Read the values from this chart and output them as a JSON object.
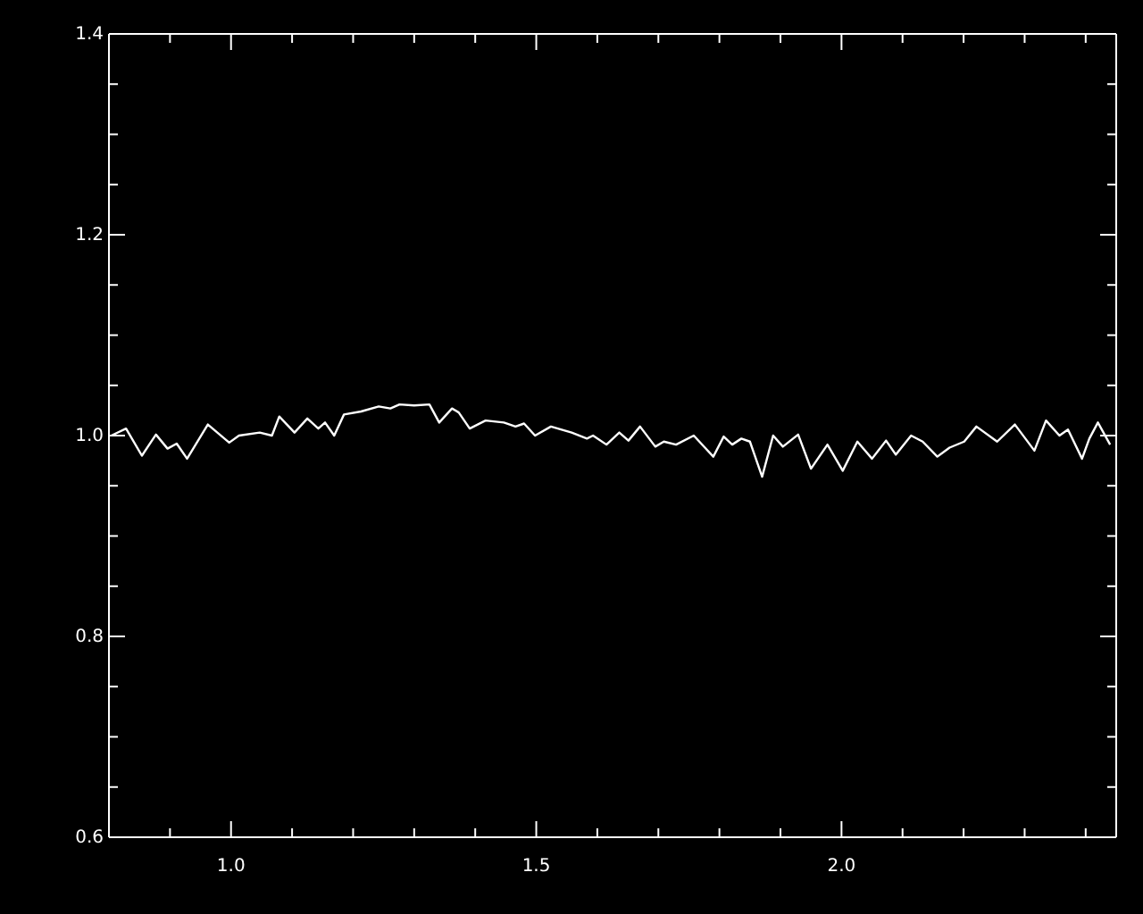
{
  "chart_data": {
    "type": "line",
    "x": [
      0.804,
      0.828,
      0.854,
      0.877,
      0.896,
      0.911,
      0.928,
      0.962,
      0.997,
      1.013,
      1.047,
      1.067,
      1.079,
      1.104,
      1.125,
      1.143,
      1.154,
      1.169,
      1.185,
      1.213,
      1.242,
      1.261,
      1.276,
      1.3,
      1.325,
      1.341,
      1.362,
      1.373,
      1.391,
      1.417,
      1.447,
      1.466,
      1.48,
      1.498,
      1.524,
      1.558,
      1.583,
      1.593,
      1.615,
      1.636,
      1.651,
      1.67,
      1.695,
      1.709,
      1.729,
      1.758,
      1.79,
      1.807,
      1.821,
      1.836,
      1.85,
      1.87,
      1.888,
      1.904,
      1.929,
      1.95,
      1.977,
      2.002,
      2.026,
      2.05,
      2.073,
      2.089,
      2.114,
      2.133,
      2.157,
      2.177,
      2.201,
      2.221,
      2.255,
      2.284,
      2.316,
      2.335,
      2.357,
      2.371,
      2.394,
      2.406,
      2.42,
      2.44
    ],
    "series": [
      {
        "color": "#ffffff",
        "values": [
          1.0,
          1.007,
          0.98,
          1.001,
          0.987,
          0.992,
          0.977,
          1.011,
          0.993,
          1.0,
          1.003,
          1.0,
          1.019,
          1.003,
          1.017,
          1.007,
          1.013,
          1.0,
          1.021,
          1.024,
          1.029,
          1.027,
          1.031,
          1.03,
          1.031,
          1.013,
          1.027,
          1.023,
          1.007,
          1.015,
          1.013,
          1.009,
          1.012,
          1.0,
          1.009,
          1.003,
          0.997,
          1.0,
          0.991,
          1.003,
          0.995,
          1.009,
          0.989,
          0.994,
          0.991,
          1.0,
          0.979,
          0.999,
          0.991,
          0.997,
          0.994,
          0.959,
          1.0,
          0.989,
          1.001,
          0.967,
          0.991,
          0.965,
          0.994,
          0.977,
          0.995,
          0.981,
          1.0,
          0.994,
          0.979,
          0.988,
          0.994,
          1.009,
          0.994,
          1.011,
          0.985,
          1.015,
          1.0,
          1.006,
          0.977,
          0.997,
          1.013,
          0.991
        ]
      }
    ],
    "xlim": [
      0.8,
      2.45
    ],
    "xticks": [
      {
        "value": 0.9,
        "label": null
      },
      {
        "value": 1.0,
        "label": "1.0"
      },
      {
        "value": 1.1,
        "label": null
      },
      {
        "value": 1.2,
        "label": null
      },
      {
        "value": 1.3,
        "label": null
      },
      {
        "value": 1.4,
        "label": null
      },
      {
        "value": 1.5,
        "label": "1.5"
      },
      {
        "value": 1.6,
        "label": null
      },
      {
        "value": 1.7,
        "label": null
      },
      {
        "value": 1.8,
        "label": null
      },
      {
        "value": 1.9,
        "label": null
      },
      {
        "value": 2.0,
        "label": "2.0"
      },
      {
        "value": 2.1,
        "label": null
      },
      {
        "value": 2.2,
        "label": null
      },
      {
        "value": 2.3,
        "label": null
      },
      {
        "value": 2.4,
        "label": null
      }
    ],
    "ylim": [
      0.6,
      1.4
    ],
    "yticks": [
      {
        "value": 0.6,
        "label": "0.6"
      },
      {
        "value": 0.65,
        "label": null
      },
      {
        "value": 0.7,
        "label": null
      },
      {
        "value": 0.75,
        "label": null
      },
      {
        "value": 0.8,
        "label": "0.8"
      },
      {
        "value": 0.85,
        "label": null
      },
      {
        "value": 0.9,
        "label": null
      },
      {
        "value": 0.95,
        "label": null
      },
      {
        "value": 1.0,
        "label": "1.0"
      },
      {
        "value": 1.05,
        "label": null
      },
      {
        "value": 1.1,
        "label": null
      },
      {
        "value": 1.15,
        "label": null
      },
      {
        "value": 1.2,
        "label": "1.2"
      },
      {
        "value": 1.25,
        "label": null
      },
      {
        "value": 1.3,
        "label": null
      },
      {
        "value": 1.35,
        "label": null
      },
      {
        "value": 1.4,
        "label": "1.4"
      }
    ],
    "line_style": "solid",
    "grid": false
  }
}
